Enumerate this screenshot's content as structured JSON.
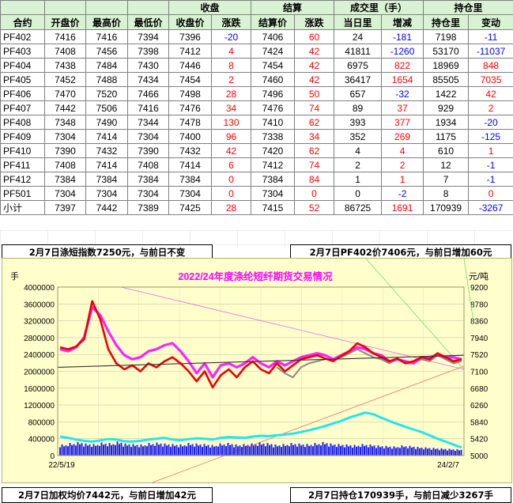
{
  "table": {
    "header_groups": [
      "收盘",
      "结算",
      "成交里（手）",
      "持仓里"
    ],
    "columns": [
      "合约",
      "开盘价",
      "最高价",
      "最低价",
      "收盘价",
      "涨跌",
      "结算价",
      "涨跌",
      "当日里",
      "增减",
      "持仓里",
      "变动"
    ],
    "rows": [
      {
        "c": "PF402",
        "open": "7416",
        "high": "7416",
        "low": "7394",
        "close": "7396",
        "chg": "-20",
        "settle": "7406",
        "schg": "60",
        "vol": "24",
        "vchg": "-181",
        "oi": "7198",
        "oichg": "-11"
      },
      {
        "c": "PF403",
        "open": "7408",
        "high": "7456",
        "low": "7398",
        "close": "7412",
        "chg": "4",
        "settle": "7424",
        "schg": "42",
        "vol": "41811",
        "vchg": "-1260",
        "oi": "53170",
        "oichg": "-11037"
      },
      {
        "c": "PF404",
        "open": "7438",
        "high": "7484",
        "low": "7430",
        "close": "7446",
        "chg": "8",
        "settle": "7454",
        "schg": "42",
        "vol": "6975",
        "vchg": "822",
        "oi": "18969",
        "oichg": "848"
      },
      {
        "c": "PF405",
        "open": "7452",
        "high": "7488",
        "low": "7434",
        "close": "7454",
        "chg": "2",
        "settle": "7460",
        "schg": "42",
        "vol": "36417",
        "vchg": "1654",
        "oi": "85505",
        "oichg": "7035"
      },
      {
        "c": "PF406",
        "open": "7470",
        "high": "7520",
        "low": "7466",
        "close": "7498",
        "chg": "28",
        "settle": "7496",
        "schg": "50",
        "vol": "657",
        "vchg": "-32",
        "oi": "1422",
        "oichg": "42"
      },
      {
        "c": "PF407",
        "open": "7442",
        "high": "7506",
        "low": "7416",
        "close": "7476",
        "chg": "34",
        "settle": "7476",
        "schg": "74",
        "vol": "89",
        "vchg": "37",
        "oi": "929",
        "oichg": "2"
      },
      {
        "c": "PF408",
        "open": "7348",
        "high": "7490",
        "low": "7344",
        "close": "7478",
        "chg": "130",
        "settle": "7410",
        "schg": "62",
        "vol": "393",
        "vchg": "377",
        "oi": "1934",
        "oichg": "-20"
      },
      {
        "c": "PF409",
        "open": "7304",
        "high": "7414",
        "low": "7304",
        "close": "7400",
        "chg": "96",
        "settle": "7338",
        "schg": "34",
        "vol": "352",
        "vchg": "269",
        "oi": "1175",
        "oichg": "-125"
      },
      {
        "c": "PF410",
        "open": "7390",
        "high": "7432",
        "low": "7390",
        "close": "7432",
        "chg": "42",
        "settle": "7420",
        "schg": "62",
        "vol": "4",
        "vchg": "4",
        "oi": "610",
        "oichg": "1"
      },
      {
        "c": "PF411",
        "open": "7408",
        "high": "7414",
        "low": "7408",
        "close": "7414",
        "chg": "6",
        "settle": "7412",
        "schg": "74",
        "vol": "2",
        "vchg": "2",
        "oi": "12",
        "oichg": "-1"
      },
      {
        "c": "PF412",
        "open": "7384",
        "high": "7384",
        "low": "7384",
        "close": "7384",
        "chg": "0",
        "settle": "7384",
        "schg": "84",
        "vol": "1",
        "vchg": "1",
        "oi": "7",
        "oichg": "-1"
      },
      {
        "c": "PF501",
        "open": "7304",
        "high": "7304",
        "low": "7304",
        "close": "7304",
        "chg": "0",
        "settle": "7304",
        "schg": "0",
        "vol": "0",
        "vchg": "-2",
        "oi": "8",
        "oichg": "0"
      },
      {
        "c": "小计",
        "open": "7397",
        "high": "7442",
        "low": "7389",
        "close": "7425",
        "chg": "28",
        "settle": "7415",
        "schg": "52",
        "vol": "86725",
        "vchg": "1691",
        "oi": "170939",
        "oichg": "-3267"
      }
    ]
  },
  "notes": {
    "top_left": "2月7日涤短指数7250元，与前日不变",
    "top_right": "2月7日PF402价7406元，与前日增加60元",
    "bottom_left": "2月7日加权均价7442元，与前日增加42元",
    "bottom_right": "2月7日持仓170939手，与前日减少3267手"
  },
  "colors": {
    "up": "#ff0000",
    "down": "#0000ff",
    "header_bg": "#d9f2d3",
    "chart_bg": "#ffffcc",
    "title": "#ff00ff"
  },
  "chart_data": {
    "type": "line",
    "title": "2022/24年度涤纶短纤期货交易情况",
    "left_unit": "手",
    "right_unit": "元/吨",
    "x_labels": [
      "22/5/19",
      "24/2/7"
    ],
    "left_ticks": [
      "4000000",
      "3600000",
      "3200000",
      "2800000",
      "2400000",
      "2000000",
      "1600000",
      "1200000",
      "800000",
      "400000",
      "0"
    ],
    "right_ticks": [
      "9200",
      "8780",
      "8360",
      "7940",
      "7520",
      "7100",
      "6680",
      "6260",
      "5840",
      "5420",
      "5000"
    ],
    "left_ylim": [
      0,
      4000000
    ],
    "right_ylim": [
      5000,
      9200
    ],
    "grid": true,
    "series": [
      {
        "key": "settle",
        "style": "thick-red",
        "axis": "right",
        "values": [
          7700,
          7650,
          7720,
          7900,
          8850,
          8400,
          7650,
          7300,
          7150,
          7250,
          7100,
          7300,
          7200,
          7350,
          7450,
          7300,
          7100,
          6850,
          7100,
          6700,
          7000,
          7150,
          6950,
          7200,
          7350,
          7150,
          7050,
          7300,
          7100,
          7250,
          7400,
          7450,
          7500,
          7420,
          7350,
          7480,
          7600,
          7800,
          7700,
          7550,
          7450,
          7350,
          7420,
          7300,
          7350,
          7450,
          7400,
          7550,
          7450,
          7350,
          7400
        ]
      },
      {
        "key": "index",
        "style": "thick-magenta",
        "axis": "right",
        "values": [
          7650,
          7600,
          7700,
          7950,
          8700,
          8500,
          8100,
          7750,
          7500,
          7400,
          7450,
          7600,
          7650,
          7750,
          7800,
          7600,
          7350,
          7050,
          7300,
          6950,
          7250,
          7300,
          7200,
          7300,
          7450,
          7300,
          7200,
          7350,
          7250,
          7350,
          7450,
          7500,
          7550,
          7500,
          7400,
          7500,
          7600,
          7700,
          7650,
          7550,
          7500,
          7350,
          7400,
          7350,
          7300,
          7450,
          7450,
          7500,
          7450,
          7450,
          7400
        ]
      },
      {
        "key": "pf_main",
        "style": "thin-grey",
        "axis": "right",
        "values": [
          null,
          null,
          null,
          null,
          null,
          null,
          null,
          null,
          null,
          null,
          null,
          null,
          null,
          null,
          null,
          null,
          null,
          null,
          null,
          null,
          null,
          null,
          null,
          null,
          null,
          null,
          null,
          7200,
          7050,
          6950,
          7200,
          7300,
          7350,
          7400,
          7400,
          7450,
          7550,
          7650,
          7550,
          7450,
          7400,
          7300,
          7400,
          7300,
          7300,
          7400,
          7350,
          7500,
          7400,
          7300,
          7350
        ]
      },
      {
        "key": "open_interest",
        "style": "cyan",
        "axis": "left",
        "values": [
          450000,
          420000,
          380000,
          350000,
          330000,
          360000,
          390000,
          380000,
          340000,
          330000,
          350000,
          380000,
          400000,
          420000,
          380000,
          360000,
          390000,
          410000,
          400000,
          380000,
          420000,
          440000,
          430000,
          420000,
          450000,
          470000,
          460000,
          480000,
          500000,
          520000,
          560000,
          600000,
          650000,
          700000,
          760000,
          820000,
          900000,
          960000,
          1020000,
          980000,
          900000,
          820000,
          750000,
          680000,
          620000,
          560000,
          480000,
          400000,
          330000,
          260000,
          190000
        ]
      },
      {
        "key": "volume",
        "style": "blue-bars",
        "axis": "left",
        "values": [
          230000,
          260000,
          280000,
          250000,
          240000,
          270000,
          260000,
          290000,
          250000,
          240000,
          230000,
          260000,
          270000,
          250000,
          240000,
          230000,
          260000,
          250000,
          240000,
          220000,
          250000,
          260000,
          230000,
          240000,
          250000,
          270000,
          260000,
          230000,
          240000,
          260000,
          250000,
          240000,
          260000,
          280000,
          250000,
          240000,
          230000,
          220000,
          240000,
          230000,
          210000,
          200000,
          190000,
          210000,
          200000,
          180000,
          170000,
          160000,
          150000,
          140000,
          130000
        ]
      },
      {
        "key": "trend",
        "style": "thin-black",
        "axis": "right",
        "values": [
          7200,
          7500
        ]
      }
    ]
  }
}
